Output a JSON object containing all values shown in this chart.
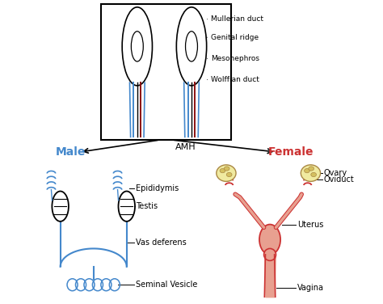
{
  "background_color": "#ffffff",
  "box_color": "#000000",
  "blue_color": "#4488CC",
  "red_color": "#CC3333",
  "dark_red_line": "#8B1010",
  "salmon_color": "#E8A090",
  "light_yellow": "#F0EAA0",
  "male_label": "Male",
  "female_label": "Female",
  "amh_label": "AMH",
  "labels_top": [
    "Mullerian duct",
    "Genital ridge",
    "Mesonephros",
    "Wolffian duct"
  ],
  "labels_male": [
    "Epididymis",
    "Testis",
    "Vas deferens",
    "Seminal Vesicle"
  ],
  "labels_female": [
    "Ovary",
    "Oviduct",
    "Uterus",
    "Vagina"
  ],
  "figsize": [
    4.74,
    3.76
  ],
  "dpi": 100
}
